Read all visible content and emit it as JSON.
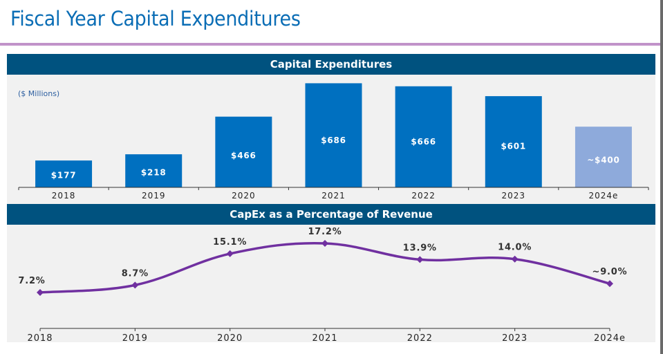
{
  "page": {
    "title": "Fiscal Year Capital Expenditures"
  },
  "colors": {
    "title": "#0a6db5",
    "rule": "#c193c9",
    "header_bg": "#00527f",
    "bar_actual": "#0070c0",
    "bar_estimate": "#8eaadb",
    "line": "#7030a0",
    "panel_bg": "#f1f1f1"
  },
  "chart_data": [
    {
      "type": "bar",
      "title": "Capital Expenditures",
      "unit_label": "($ Millions)",
      "categories": [
        "2018",
        "2019",
        "2020",
        "2021",
        "2022",
        "2023",
        "2024e"
      ],
      "values": [
        177,
        218,
        466,
        686,
        666,
        601,
        400
      ],
      "data_labels": [
        "$177",
        "$218",
        "$466",
        "$686",
        "$666",
        "$601",
        "~$400"
      ],
      "estimate": [
        false,
        false,
        false,
        false,
        false,
        false,
        true
      ],
      "xlabel": "",
      "ylabel": "",
      "ylim": [
        0,
        700
      ],
      "grid": false,
      "legend": "none"
    },
    {
      "type": "line",
      "title": "CapEx as a Percentage of Revenue",
      "categories": [
        "2018",
        "2019",
        "2020",
        "2021",
        "2022",
        "2023",
        "2024e"
      ],
      "values": [
        7.2,
        8.7,
        15.1,
        17.2,
        13.9,
        14.0,
        9.0
      ],
      "data_labels": [
        "7.2%",
        "8.7%",
        "15.1%",
        "17.2%",
        "13.9%",
        "14.0%",
        "~9.0%"
      ],
      "xlabel": "",
      "ylabel": "",
      "ylim": [
        0,
        18.5
      ],
      "grid": false,
      "legend": "none"
    }
  ]
}
